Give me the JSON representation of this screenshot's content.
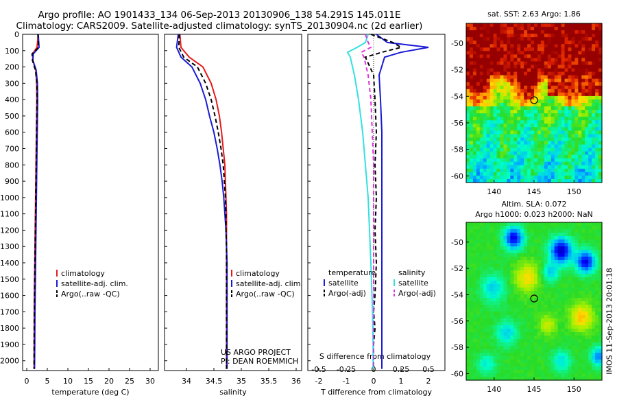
{
  "title_line1": "Argo profile: AO 1901433_134 06-Sep-2013 20130906_138 54.291S 145.011E",
  "title_line2": "Climatology: CARS2009. Satellite-adjusted climatology: synTS_20130904.nc (2d earlier)",
  "credit_lines": [
    "US ARGO PROJECT",
    "PI: DEAN ROEMMICH"
  ],
  "timestamp": "IMOS 11-Sep-2013 20:01:18",
  "colors": {
    "climatology": "#e41a1c",
    "satellite": "#1a1ad6",
    "argo": "#000000",
    "sat_salinity": "#33e0e0",
    "argo_salinity": "#e033e0"
  },
  "chart_data": [
    {
      "type": "line",
      "xlabel": "temperature (deg C)",
      "ylabel": "",
      "xlim": [
        -1,
        32
      ],
      "ylim": [
        2060,
        0
      ],
      "xticks": [
        0,
        5,
        10,
        15,
        20,
        25,
        30
      ],
      "yticks": [
        0,
        100,
        200,
        300,
        400,
        500,
        600,
        700,
        800,
        900,
        1000,
        1100,
        1200,
        1300,
        1400,
        1500,
        1600,
        1700,
        1800,
        1900,
        2000
      ],
      "legend_position": "middle",
      "series": [
        {
          "name": "climatology",
          "style": "solid",
          "color": "#e41a1c",
          "x": [
            2.8,
            2.5,
            1.4,
            1.5,
            2.2,
            2.4,
            2.45,
            2.4,
            2.35,
            2.3,
            2.25,
            2.2,
            2.15,
            2.1,
            2.05,
            2.0,
            1.95,
            1.9,
            1.85,
            1.82,
            1.8,
            1.78
          ],
          "y": [
            0,
            80,
            120,
            160,
            220,
            300,
            400,
            500,
            600,
            700,
            800,
            900,
            1000,
            1100,
            1200,
            1300,
            1400,
            1500,
            1600,
            1700,
            1900,
            2050
          ]
        },
        {
          "name": "satellite-adj. clim.",
          "style": "solid",
          "color": "#1a1ad6",
          "x": [
            2.8,
            3.0,
            1.6,
            1.5,
            2.3,
            2.6,
            2.65,
            2.6,
            2.55,
            2.5,
            2.45,
            2.4,
            2.35,
            2.3,
            2.25,
            2.2,
            2.15,
            2.1,
            2.05,
            2.0,
            1.95,
            1.9
          ],
          "y": [
            0,
            80,
            120,
            160,
            220,
            300,
            400,
            500,
            600,
            700,
            800,
            900,
            1000,
            1100,
            1200,
            1300,
            1400,
            1500,
            1600,
            1700,
            1900,
            2050
          ]
        },
        {
          "name": "Argo(..raw -QC)",
          "style": "dashed",
          "color": "#000000",
          "x": [
            2.7,
            2.9,
            1.3,
            1.4,
            2.1,
            2.5,
            2.5,
            2.45,
            2.4,
            2.35,
            2.3,
            2.25,
            2.2,
            2.15,
            2.1,
            2.05,
            2.0,
            1.95,
            1.9,
            1.85,
            1.8,
            1.78
          ],
          "y": [
            0,
            80,
            120,
            160,
            220,
            300,
            400,
            500,
            600,
            700,
            800,
            900,
            1000,
            1100,
            1200,
            1300,
            1400,
            1500,
            1600,
            1700,
            1900,
            2050
          ]
        }
      ]
    },
    {
      "type": "line",
      "xlabel": "salinity",
      "ylabel": "",
      "xlim": [
        33.6,
        36.1
      ],
      "ylim": [
        2060,
        0
      ],
      "xticks": [
        34,
        34.5,
        35,
        35.5,
        36
      ],
      "legend_position": "middle",
      "series": [
        {
          "name": "climatology",
          "style": "solid",
          "color": "#e41a1c",
          "x": [
            33.88,
            33.9,
            34.05,
            34.3,
            34.45,
            34.54,
            34.6,
            34.64,
            34.67,
            34.7,
            34.71,
            34.72,
            34.73,
            34.73,
            34.73,
            34.73,
            34.73,
            34.73,
            34.73
          ],
          "y": [
            0,
            80,
            140,
            200,
            300,
            400,
            500,
            600,
            700,
            800,
            900,
            1000,
            1100,
            1200,
            1300,
            1400,
            1600,
            1800,
            2050
          ]
        },
        {
          "name": "satellite-adj. clim.",
          "style": "solid",
          "color": "#1a1ad6",
          "x": [
            33.85,
            33.82,
            33.9,
            34.1,
            34.25,
            34.35,
            34.42,
            34.5,
            34.56,
            34.61,
            34.65,
            34.68,
            34.7,
            34.72,
            34.73,
            34.74,
            34.74,
            34.74,
            34.74
          ],
          "y": [
            0,
            80,
            140,
            200,
            300,
            400,
            500,
            600,
            700,
            800,
            900,
            1000,
            1100,
            1200,
            1300,
            1400,
            1600,
            1800,
            2050
          ]
        },
        {
          "name": "Argo(..raw -QC)",
          "style": "dashed",
          "color": "#000000",
          "x": [
            33.87,
            33.86,
            33.95,
            34.2,
            34.35,
            34.45,
            34.52,
            34.58,
            34.63,
            34.67,
            34.69,
            34.71,
            34.72,
            34.72,
            34.73,
            34.73,
            34.73,
            34.73,
            34.73
          ],
          "y": [
            0,
            80,
            140,
            200,
            300,
            400,
            500,
            600,
            700,
            800,
            900,
            1000,
            1100,
            1200,
            1300,
            1400,
            1600,
            1800,
            2050
          ]
        }
      ]
    },
    {
      "type": "line",
      "xlabel": "T difference from climatology",
      "xlabel_top": "S difference from climatology",
      "xlim": [
        -2.4,
        2.6
      ],
      "ylim": [
        2060,
        0
      ],
      "xticks": [
        -2,
        -1,
        0,
        1,
        2
      ],
      "xticks_top": [
        -0.5,
        -0.25,
        0,
        0.25,
        0.5
      ],
      "legend_position": "middle",
      "legend_groups": [
        "temperature",
        "salinity"
      ],
      "series": [
        {
          "name": "satellite",
          "group": "temperature",
          "style": "solid",
          "color": "#1a1ad6",
          "x": [
            0.1,
            0.5,
            2.0,
            1.0,
            0.4,
            0.2,
            0.25,
            0.3,
            0.3,
            0.3,
            0.3,
            0.3,
            0.3,
            0.3,
            0.3,
            0.3,
            0.3,
            0.3
          ],
          "y": [
            0,
            50,
            80,
            110,
            140,
            250,
            400,
            600,
            800,
            1000,
            1200,
            1400,
            1600,
            1700,
            1800,
            1900,
            2000,
            2050
          ]
        },
        {
          "name": "Argo(-adj)",
          "group": "temperature",
          "style": "dashed",
          "color": "#000000",
          "x": [
            -0.1,
            0.7,
            1.0,
            0.3,
            -0.3,
            0.0,
            0.05,
            0.1,
            0.05,
            0.1,
            0.05,
            0.1,
            0.05,
            0.0,
            0.05,
            0.0,
            0.0,
            0.0
          ],
          "y": [
            0,
            50,
            80,
            110,
            140,
            250,
            400,
            600,
            800,
            1000,
            1200,
            1400,
            1600,
            1700,
            1800,
            1900,
            2000,
            2050
          ]
        },
        {
          "name": "satellite",
          "group": "salinity",
          "style": "solid",
          "color": "#33e0e0",
          "x": [
            -0.2,
            -0.3,
            -0.6,
            -0.95,
            -0.85,
            -0.7,
            -0.55,
            -0.4,
            -0.3,
            -0.2,
            -0.15,
            -0.1,
            -0.06,
            -0.04,
            -0.03,
            -0.02,
            -0.02,
            -0.02
          ],
          "y": [
            0,
            50,
            80,
            110,
            140,
            250,
            400,
            600,
            800,
            1000,
            1200,
            1400,
            1600,
            1700,
            1800,
            1900,
            2000,
            2050
          ]
        },
        {
          "name": "Argo(-adj)",
          "group": "salinity",
          "style": "dashed",
          "color": "#e033e0",
          "x": [
            -0.3,
            -0.2,
            -0.1,
            -0.45,
            -0.35,
            -0.2,
            -0.1,
            -0.05,
            0.0,
            0.0,
            0.0,
            0.0,
            0.0,
            0.0,
            0.0,
            0.0,
            0.0,
            0.0
          ],
          "y": [
            0,
            50,
            80,
            110,
            140,
            250,
            400,
            600,
            800,
            1000,
            1200,
            1400,
            1600,
            1700,
            1800,
            1900,
            2000,
            2050
          ]
        }
      ]
    },
    {
      "type": "heatmap",
      "title": "sat. SST: 2.63 Argo: 1.86",
      "xlim": [
        136.5,
        153.5
      ],
      "ylim": [
        -60.5,
        -48.5
      ],
      "xticks": [
        140,
        145,
        150
      ],
      "yticks": [
        -50,
        -52,
        -54,
        -56,
        -58,
        -60
      ],
      "marker": {
        "x": 145.011,
        "y": -54.291
      }
    },
    {
      "type": "heatmap",
      "title": "Altim. SLA: 0.072",
      "subtitle": "Argo h1000: 0.023 h2000: NaN",
      "xlim": [
        136.5,
        153.5
      ],
      "ylim": [
        -60.5,
        -48.5
      ],
      "xticks": [
        140,
        145,
        150
      ],
      "yticks": [
        -50,
        -52,
        -54,
        -56,
        -58,
        -60
      ],
      "marker": {
        "x": 145.011,
        "y": -54.291
      }
    }
  ]
}
